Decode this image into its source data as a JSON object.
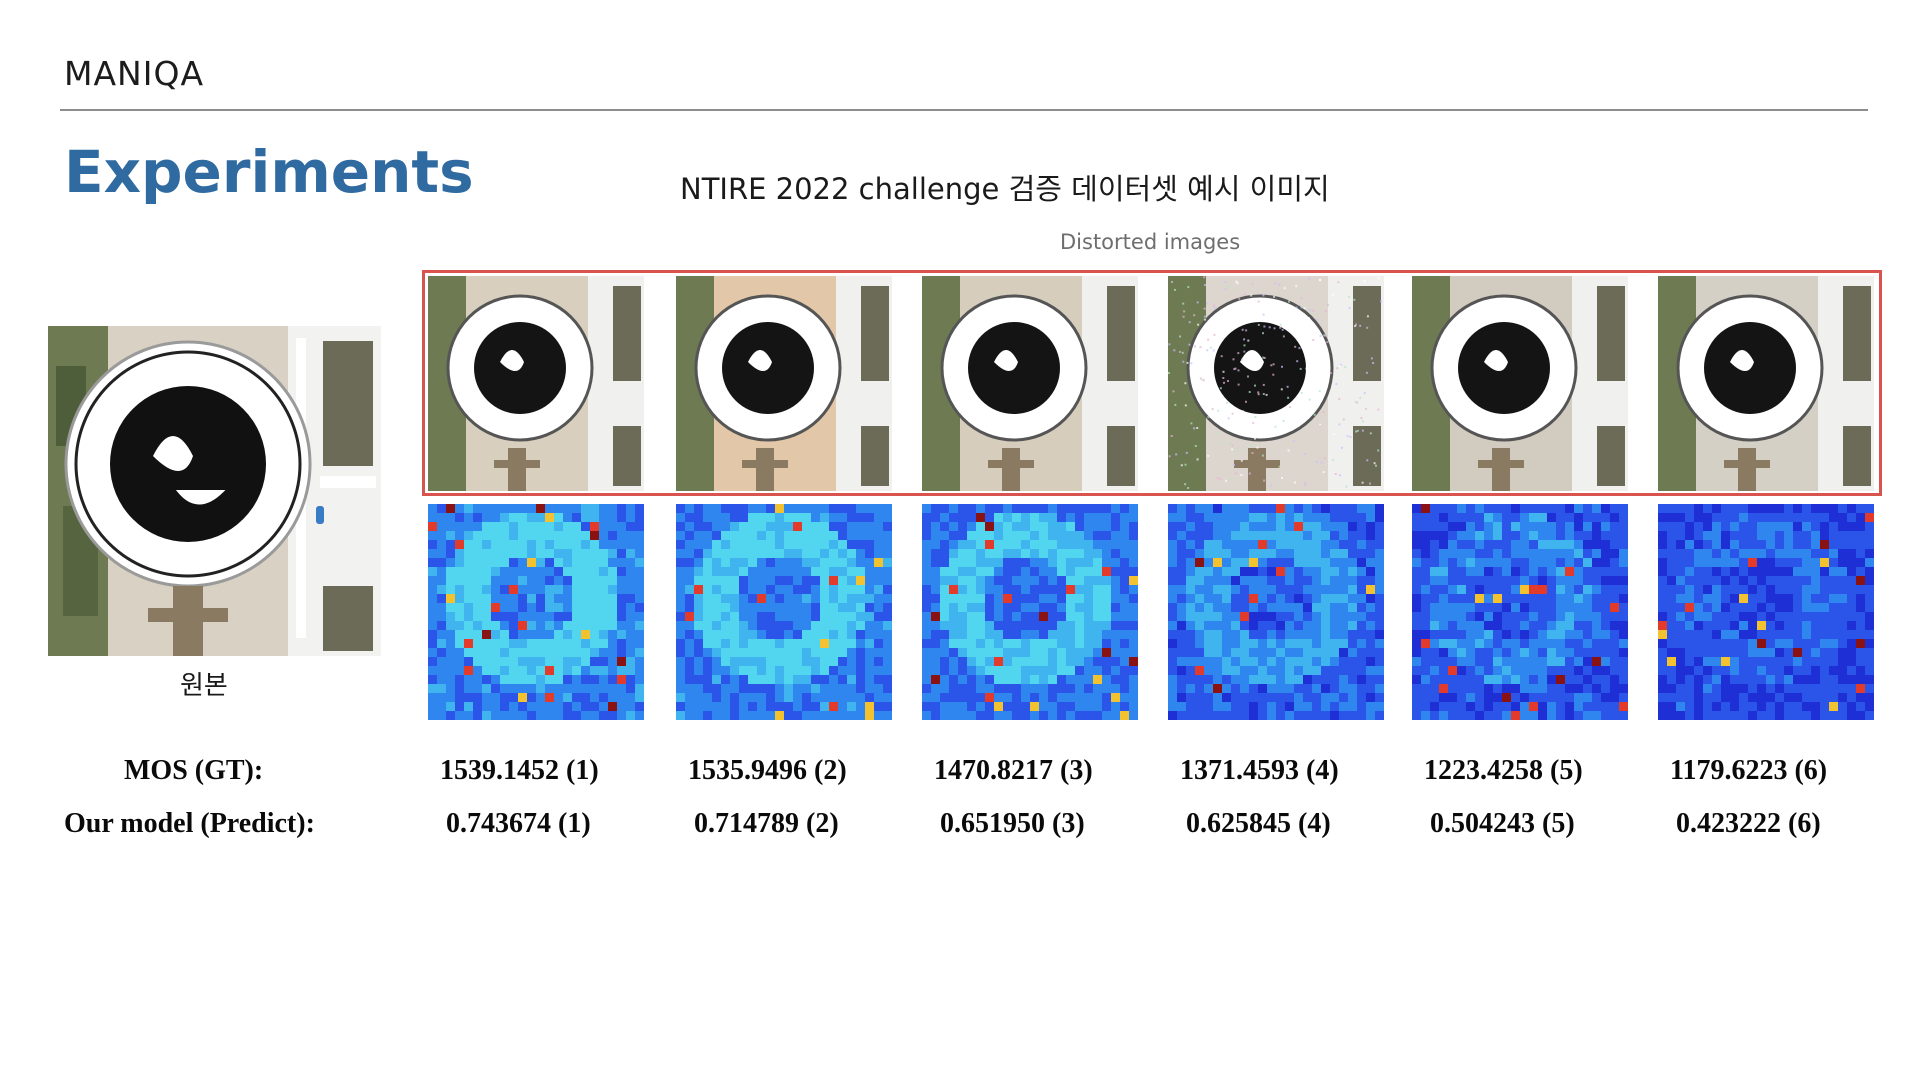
{
  "header": {
    "brand": "MANIQA"
  },
  "title": "Experiments",
  "subtitle": "NTIRE 2022 challenge 검증 데이터셋 예시 이미지",
  "distorted_label": "Distorted images",
  "original_caption": "원본",
  "row_labels": {
    "mos": "MOS (GT):",
    "predict": "Our model (Predict):"
  },
  "colors": {
    "heading": "#2f6aa0",
    "frame": "#d9534f"
  },
  "images": [
    {
      "mos": "1539.1452 (1)",
      "pred": "0.743674 (1)",
      "quality": 1.0
    },
    {
      "mos": "1535.9496 (2)",
      "pred": "0.714789 (2)",
      "quality": 0.92
    },
    {
      "mos": "1470.8217 (3)",
      "pred": "0.651950 (3)",
      "quality": 0.85
    },
    {
      "mos": "1371.4593 (4)",
      "pred": "0.625845 (4)",
      "quality": 0.6
    },
    {
      "mos": "1223.4258 (5)",
      "pred": "0.504243 (5)",
      "quality": 0.45
    },
    {
      "mos": "1179.6223 (6)",
      "pred": "0.423222 (6)",
      "quality": 0.3
    }
  ]
}
